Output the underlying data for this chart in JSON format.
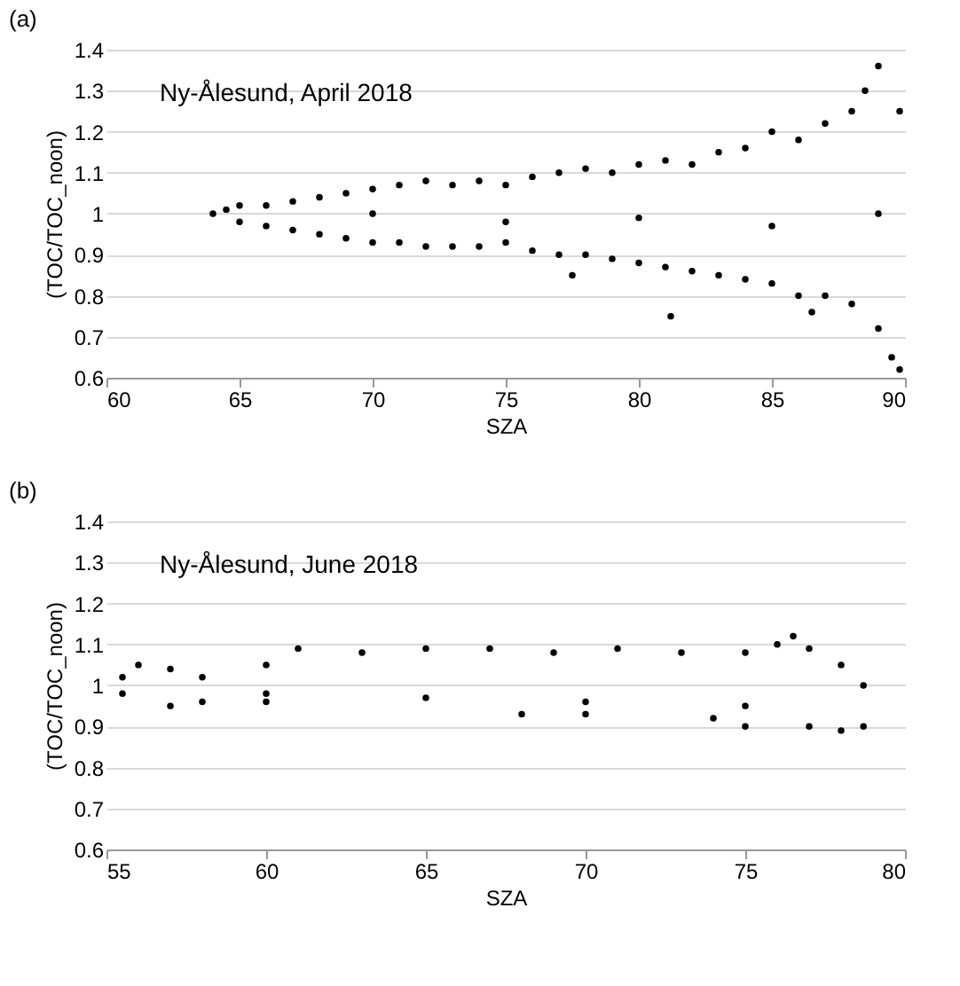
{
  "chart_data": [
    {
      "type": "scatter",
      "title": "(a)",
      "xlabel": "SZA",
      "ylabel": "(TOC/TOC_noon)",
      "annotations": [
        "Ny-Ålesund, April 2018"
      ],
      "xlim": [
        60,
        90
      ],
      "xticks": [
        60,
        65,
        70,
        75,
        80,
        85,
        90
      ],
      "ylim": [
        0.6,
        1.4
      ],
      "yticks": [
        0.6,
        0.7,
        0.8,
        0.9,
        1,
        1.1,
        1.2,
        1.3,
        1.4
      ],
      "grid": "y",
      "marker": "circle",
      "series": [
        {
          "color": "#000000",
          "x": [
            64,
            64.5,
            65,
            65,
            66,
            66,
            67,
            67,
            68,
            68,
            69,
            69,
            70,
            70,
            71,
            71,
            72,
            72,
            73,
            73,
            74,
            74,
            75,
            75,
            76,
            76,
            77,
            77,
            77.5,
            78,
            78,
            79,
            79,
            80,
            80,
            81,
            81,
            81.2,
            82,
            82,
            83,
            83,
            84,
            84,
            85,
            85,
            86,
            86,
            86.5,
            87,
            87,
            88,
            88,
            88.5,
            89,
            89,
            89.5,
            89.8,
            89.8,
            70,
            75,
            80,
            85,
            89
          ],
          "values": [
            1.0,
            1.01,
            0.98,
            1.02,
            0.97,
            1.02,
            0.96,
            1.03,
            0.95,
            1.04,
            0.94,
            1.05,
            0.93,
            1.06,
            0.93,
            1.07,
            0.92,
            1.08,
            0.92,
            1.07,
            0.92,
            1.08,
            0.93,
            1.07,
            0.91,
            1.09,
            0.9,
            1.1,
            0.85,
            0.9,
            1.11,
            0.89,
            1.1,
            0.88,
            1.12,
            0.87,
            1.13,
            0.75,
            0.86,
            1.12,
            0.85,
            1.15,
            0.84,
            1.16,
            0.83,
            1.2,
            0.8,
            1.18,
            0.76,
            0.8,
            1.22,
            0.78,
            1.25,
            1.3,
            0.72,
            1.36,
            0.65,
            0.62,
            1.25,
            1.0,
            0.98,
            0.99,
            0.97,
            1.0
          ]
        }
      ]
    },
    {
      "type": "scatter",
      "title": "(b)",
      "xlabel": "SZA",
      "ylabel": "(TOC/TOC_noon)",
      "annotations": [
        "Ny-Ålesund, June 2018"
      ],
      "xlim": [
        55,
        80
      ],
      "xticks": [
        55,
        60,
        65,
        70,
        75,
        80
      ],
      "ylim": [
        0.6,
        1.4
      ],
      "yticks": [
        0.6,
        0.7,
        0.8,
        0.9,
        1,
        1.1,
        1.2,
        1.3,
        1.4
      ],
      "grid": "y",
      "marker": "circle",
      "series": [
        {
          "color": "#000000",
          "x": [
            55.5,
            55.5,
            56,
            57,
            57,
            58,
            58,
            60,
            60,
            61,
            63,
            65,
            67,
            68,
            69,
            70,
            71,
            73,
            74,
            75,
            75,
            76,
            76.5,
            77,
            77,
            78,
            78,
            78.7,
            78.7,
            60,
            65,
            70,
            75
          ],
          "values": [
            0.98,
            1.02,
            1.05,
            1.04,
            0.95,
            0.96,
            1.02,
            0.96,
            1.05,
            1.09,
            1.08,
            1.09,
            1.09,
            0.93,
            1.08,
            0.93,
            1.09,
            1.08,
            0.92,
            1.08,
            0.9,
            1.1,
            1.12,
            1.09,
            0.9,
            1.05,
            0.89,
            1.0,
            0.9,
            0.98,
            0.97,
            0.96,
            0.95
          ]
        }
      ]
    }
  ]
}
